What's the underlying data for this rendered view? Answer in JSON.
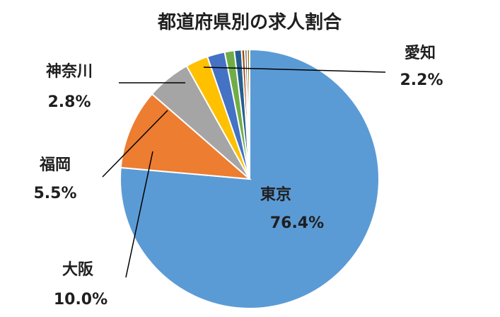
{
  "chart_data": {
    "type": "pie",
    "title": "都道府県別の求人割合",
    "colors": {
      "tokyo": "#5b9bd5",
      "osaka": "#ed7d31",
      "fukuoka": "#a5a5a5",
      "kanagawa": "#ffc000",
      "aichi": "#4472c4",
      "others": [
        "#70ad47",
        "#255e91",
        "#9e480e",
        "#636363",
        "#997300"
      ]
    },
    "slices": [
      {
        "key": "tokyo",
        "label": "東京",
        "value": 76.4,
        "value_label": "76.4%"
      },
      {
        "key": "osaka",
        "label": "大阪",
        "value": 10.0,
        "value_label": "10.0%"
      },
      {
        "key": "fukuoka",
        "label": "福岡",
        "value": 5.5,
        "value_label": "5.5%"
      },
      {
        "key": "kanagawa",
        "label": "神奈川",
        "value": 2.8,
        "value_label": "2.8%"
      },
      {
        "key": "aichi",
        "label": "愛知",
        "value": 2.2,
        "value_label": "2.2%"
      },
      {
        "key": "other1",
        "value": 1.2
      },
      {
        "key": "other2",
        "value": 0.9
      },
      {
        "key": "other3",
        "value": 0.4
      },
      {
        "key": "other4",
        "value": 0.3
      },
      {
        "key": "other5",
        "value": 0.3
      }
    ]
  }
}
